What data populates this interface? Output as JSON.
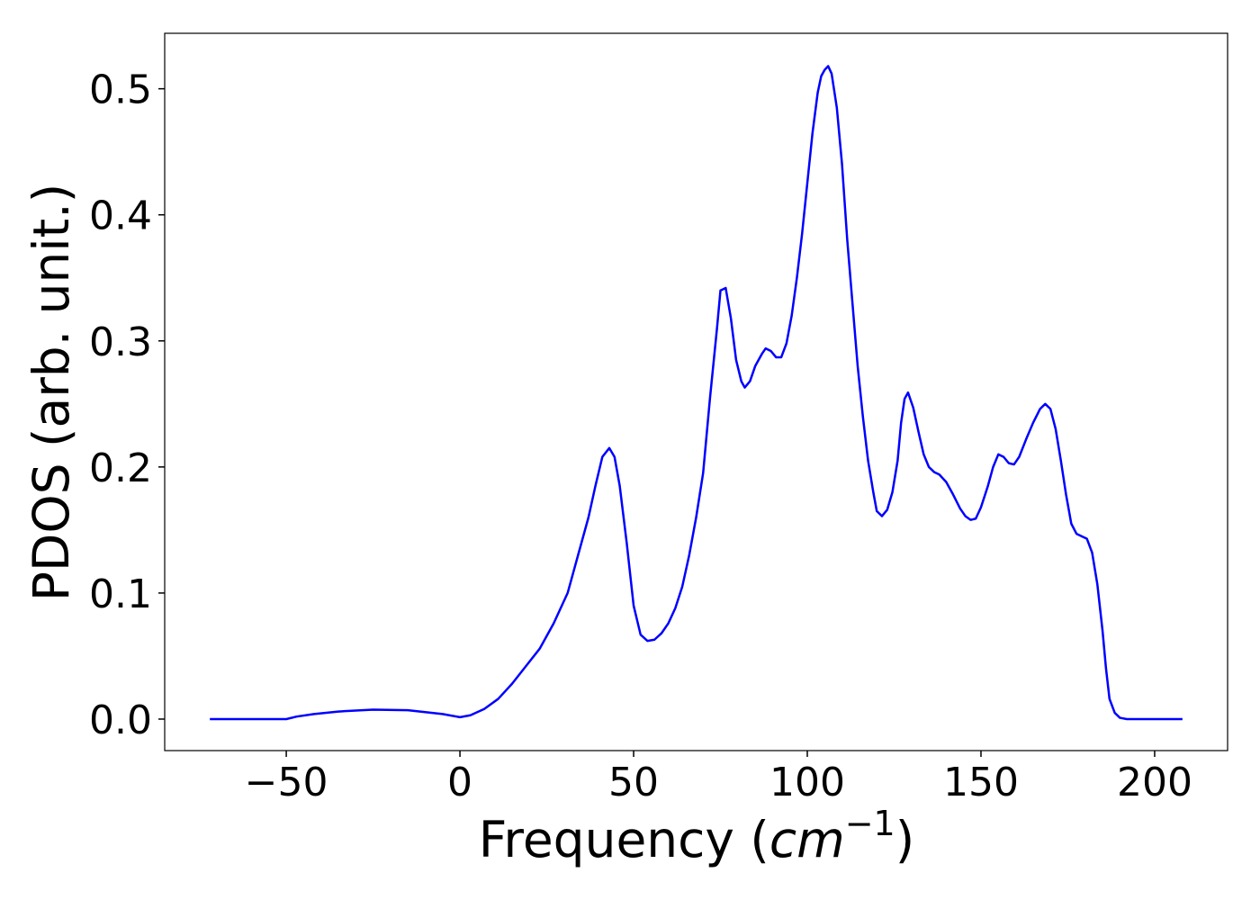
{
  "chart_data": {
    "type": "line",
    "x_label": {
      "text": "Frequency (",
      "math": "cm",
      "superscript": "−1",
      "close": ")"
    },
    "y_label": "PDOS (arb. unit.)",
    "x": [
      -72,
      -50,
      -47,
      -42,
      -35,
      -25,
      -15,
      -5,
      0,
      3,
      7,
      11,
      15,
      19,
      23,
      27,
      31,
      34,
      37,
      39,
      41,
      43,
      44.5,
      46,
      48,
      50,
      52,
      54,
      56,
      58,
      60,
      62,
      64,
      66,
      68,
      70,
      72,
      74,
      75,
      76.5,
      78,
      79.5,
      81,
      82,
      83.5,
      85,
      87,
      88,
      89.5,
      91,
      92.5,
      94,
      95.5,
      97,
      98.5,
      100,
      101.5,
      103,
      104,
      105,
      106,
      107,
      108.5,
      110,
      111.5,
      113,
      114.5,
      116,
      117.5,
      119,
      120,
      121.5,
      123,
      124.5,
      126,
      127,
      128,
      129,
      130.5,
      132,
      133.5,
      135,
      136.5,
      138,
      140,
      142,
      144,
      145.5,
      147,
      148.5,
      150,
      152,
      153.5,
      155,
      156.5,
      158,
      159.5,
      161,
      163,
      165,
      167,
      168.5,
      170,
      171.5,
      173,
      174.5,
      176,
      177.5,
      179,
      180.5,
      182,
      183.5,
      185,
      186,
      187,
      188.5,
      190,
      192,
      208
    ],
    "values": [
      0,
      0,
      0.002,
      0.004,
      0.006,
      0.0075,
      0.007,
      0.004,
      0.0015,
      0.003,
      0.008,
      0.016,
      0.028,
      0.042,
      0.056,
      0.076,
      0.1,
      0.13,
      0.16,
      0.185,
      0.208,
      0.215,
      0.208,
      0.185,
      0.14,
      0.09,
      0.067,
      0.062,
      0.063,
      0.068,
      0.076,
      0.088,
      0.105,
      0.13,
      0.16,
      0.195,
      0.255,
      0.31,
      0.34,
      0.342,
      0.318,
      0.285,
      0.268,
      0.263,
      0.268,
      0.28,
      0.29,
      0.294,
      0.292,
      0.287,
      0.287,
      0.298,
      0.32,
      0.35,
      0.385,
      0.425,
      0.465,
      0.497,
      0.51,
      0.515,
      0.518,
      0.512,
      0.485,
      0.44,
      0.38,
      0.33,
      0.28,
      0.24,
      0.205,
      0.18,
      0.165,
      0.161,
      0.166,
      0.18,
      0.205,
      0.235,
      0.254,
      0.259,
      0.247,
      0.228,
      0.21,
      0.2,
      0.196,
      0.194,
      0.188,
      0.178,
      0.167,
      0.161,
      0.158,
      0.159,
      0.168,
      0.185,
      0.2,
      0.21,
      0.208,
      0.203,
      0.202,
      0.208,
      0.222,
      0.235,
      0.246,
      0.25,
      0.246,
      0.23,
      0.205,
      0.178,
      0.155,
      0.147,
      0.145,
      0.143,
      0.132,
      0.107,
      0.07,
      0.04,
      0.016,
      0.005,
      0.001,
      0,
      0
    ],
    "color": "#0000ff",
    "xlim": [
      -85,
      221
    ],
    "ylim": [
      -0.025,
      0.544
    ],
    "xticks": [
      {
        "value": -50,
        "label": "−50"
      },
      0,
      50,
      100,
      150,
      200
    ],
    "yticks": [
      {
        "value": 0,
        "label": "0.0"
      },
      0.1,
      0.2,
      0.3,
      0.4,
      0.5
    ],
    "grid": false
  }
}
